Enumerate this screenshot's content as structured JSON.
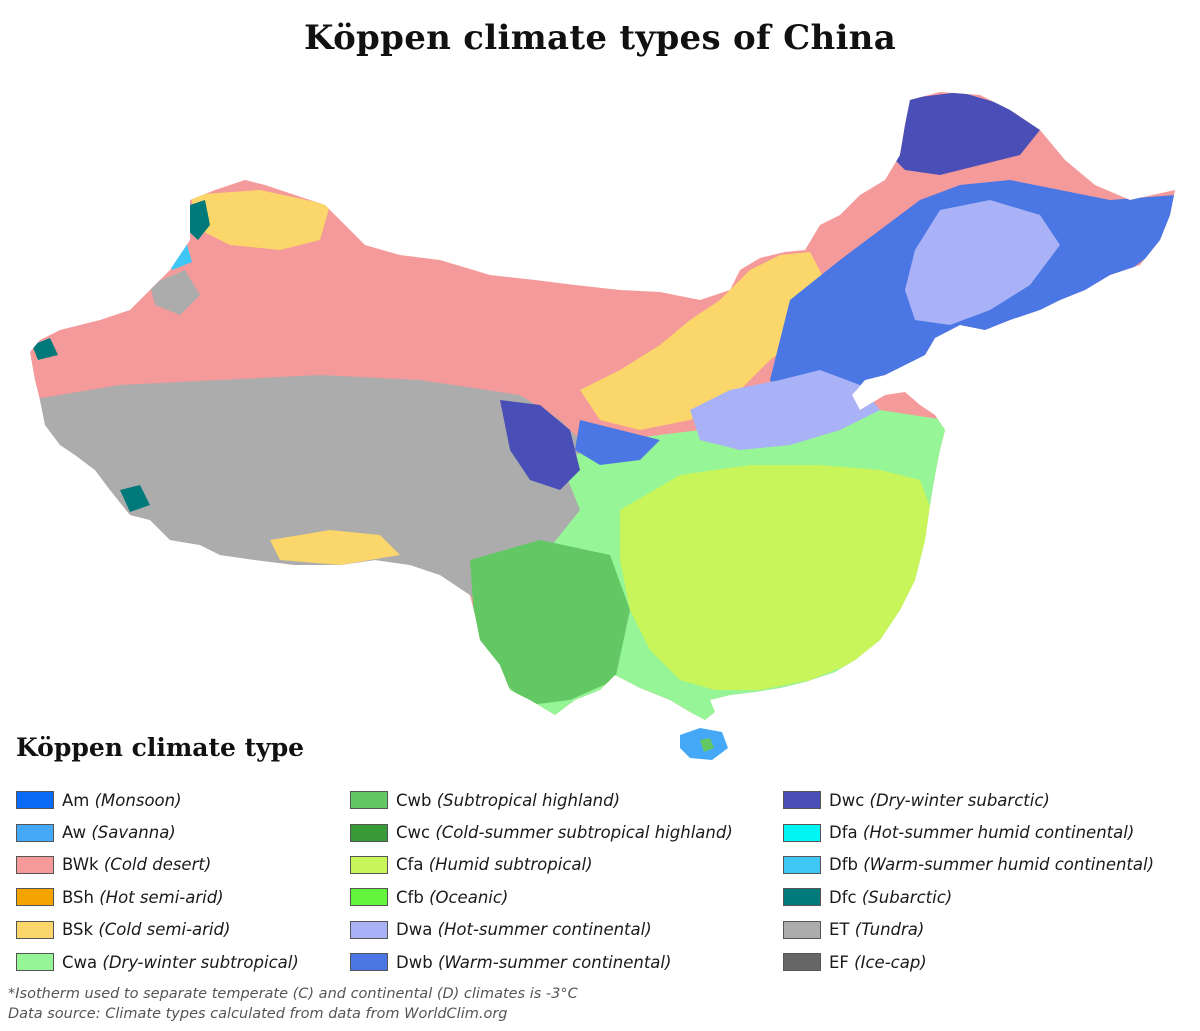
{
  "title": "Köppen climate types of China",
  "legend": {
    "title": "Köppen climate type",
    "columns": [
      [
        {
          "code": "Am",
          "name": "(Monsoon)",
          "color": "#0a6cf5"
        },
        {
          "code": "Aw",
          "name": "(Savanna)",
          "color": "#45a8f6"
        },
        {
          "code": "BWk",
          "name": "(Cold desert)",
          "color": "#f59a9a"
        },
        {
          "code": "BSh",
          "name": "(Hot semi-arid)",
          "color": "#f5a300"
        },
        {
          "code": "BSk",
          "name": "(Cold semi-arid)",
          "color": "#fbd66a"
        },
        {
          "code": "Cwa",
          "name": "(Dry-winter subtropical)",
          "color": "#96f596"
        }
      ],
      [
        {
          "code": "Cwb",
          "name": "(Subtropical highland)",
          "color": "#63c763"
        },
        {
          "code": "Cwc",
          "name": "(Cold-summer subtropical highland)",
          "color": "#379a37"
        },
        {
          "code": "Cfa",
          "name": "(Humid subtropical)",
          "color": "#c8f55a"
        },
        {
          "code": "Cfb",
          "name": "(Oceanic)",
          "color": "#63f53c"
        },
        {
          "code": "Dwa",
          "name": "(Hot-summer continental)",
          "color": "#a9b1f7"
        },
        {
          "code": "Dwb",
          "name": "(Warm-summer continental)",
          "color": "#4a77e3"
        }
      ],
      [
        {
          "code": "Dwc",
          "name": "(Dry-winter subarctic)",
          "color": "#4a4fb7"
        },
        {
          "code": "Dfa",
          "name": "(Hot-summer humid continental)",
          "color": "#00f5f5"
        },
        {
          "code": "Dfb",
          "name": "(Warm-summer humid continental)",
          "color": "#3ec6f5"
        },
        {
          "code": "Dfc",
          "name": "(Subarctic)",
          "color": "#00797a"
        },
        {
          "code": "ET",
          "name": "(Tundra)",
          "color": "#acacac"
        },
        {
          "code": "EF",
          "name": "(Ice-cap)",
          "color": "#666666"
        }
      ]
    ]
  },
  "footer": {
    "isotherm_note": "*Isotherm used to separate temperate (C) and continental (D) climates is -3°C",
    "source": "Data source: Climate types calculated from data from WorldClim.org"
  }
}
